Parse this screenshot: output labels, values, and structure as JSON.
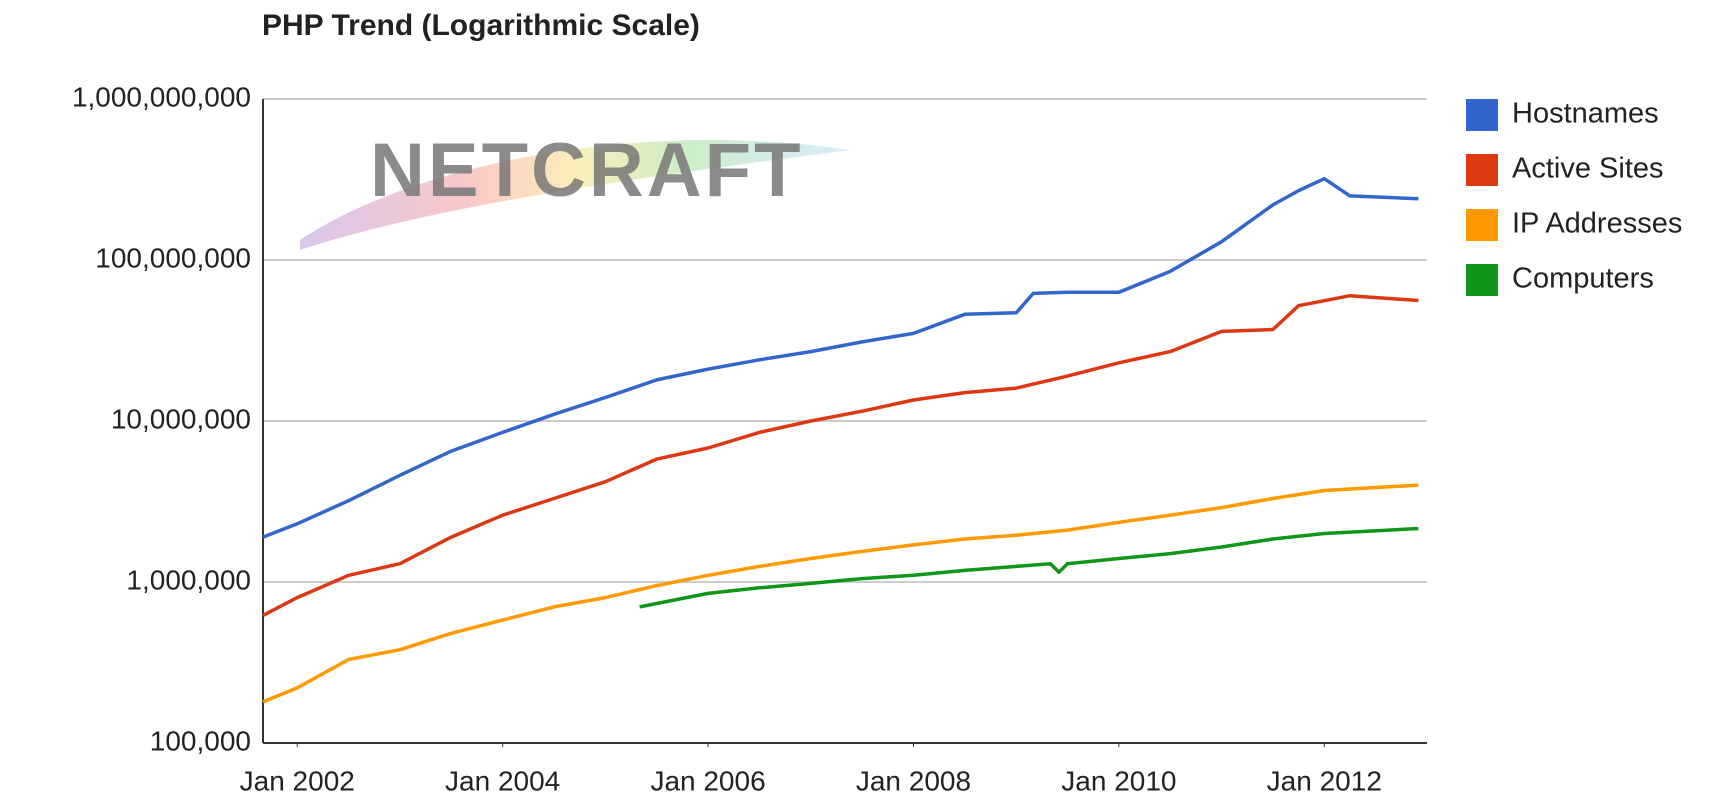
{
  "chart_data": {
    "type": "line",
    "title": "PHP Trend (Logarithmic Scale)",
    "logo": "NETCRAFT",
    "log_scale": true,
    "grid": true,
    "legend": "right",
    "ylim": [
      100000,
      1000000000
    ],
    "yticks": [
      {
        "value": 100000,
        "label": "100,000"
      },
      {
        "value": 1000000,
        "label": "1,000,000"
      },
      {
        "value": 10000000,
        "label": "10,000,000"
      },
      {
        "value": 100000000,
        "label": "100,000,000"
      },
      {
        "value": 1000000000,
        "label": "1,000,000,000"
      }
    ],
    "xlim": [
      "2001-09",
      "2013-01"
    ],
    "xticks": [
      {
        "value": "2002-01",
        "label": "Jan 2002"
      },
      {
        "value": "2004-01",
        "label": "Jan 2004"
      },
      {
        "value": "2006-01",
        "label": "Jan 2006"
      },
      {
        "value": "2008-01",
        "label": "Jan 2008"
      },
      {
        "value": "2010-01",
        "label": "Jan 2010"
      },
      {
        "value": "2012-01",
        "label": "Jan 2012"
      }
    ],
    "series": [
      {
        "name": "Hostnames",
        "color": "#3366cc",
        "x": [
          "2001-09",
          "2002-01",
          "2002-07",
          "2003-01",
          "2003-07",
          "2004-01",
          "2004-07",
          "2005-01",
          "2005-07",
          "2006-01",
          "2006-07",
          "2007-01",
          "2007-07",
          "2008-01",
          "2008-07",
          "2009-01",
          "2009-03",
          "2009-07",
          "2010-01",
          "2010-07",
          "2011-01",
          "2011-07",
          "2011-10",
          "2012-01",
          "2012-04",
          "2012-12"
        ],
        "values": [
          1900000,
          2300000,
          3200000,
          4600000,
          6500000,
          8500000,
          11000000,
          14000000,
          18000000,
          21000000,
          24000000,
          27000000,
          31000000,
          35000000,
          46000000,
          47000000,
          62000000,
          63000000,
          63000000,
          85000000,
          130000000,
          220000000,
          270000000,
          320000000,
          250000000,
          240000000
        ]
      },
      {
        "name": "Active Sites",
        "color": "#dc3912",
        "x": [
          "2001-09",
          "2002-01",
          "2002-07",
          "2003-01",
          "2003-07",
          "2004-01",
          "2004-07",
          "2005-01",
          "2005-07",
          "2006-01",
          "2006-07",
          "2007-01",
          "2007-07",
          "2008-01",
          "2008-07",
          "2009-01",
          "2009-07",
          "2010-01",
          "2010-07",
          "2011-01",
          "2011-07",
          "2011-10",
          "2012-04",
          "2012-12"
        ],
        "values": [
          620000,
          800000,
          1100000,
          1300000,
          1900000,
          2600000,
          3300000,
          4200000,
          5800000,
          6800000,
          8500000,
          10000000,
          11500000,
          13500000,
          15000000,
          16000000,
          19000000,
          23000000,
          27000000,
          36000000,
          37000000,
          52000000,
          60000000,
          56000000
        ]
      },
      {
        "name": "IP Addresses",
        "color": "#ff9900",
        "x": [
          "2001-09",
          "2002-01",
          "2002-07",
          "2003-01",
          "2003-07",
          "2004-01",
          "2004-07",
          "2005-01",
          "2005-07",
          "2006-01",
          "2006-07",
          "2007-01",
          "2007-07",
          "2008-01",
          "2008-07",
          "2009-01",
          "2009-07",
          "2010-01",
          "2010-07",
          "2011-01",
          "2011-07",
          "2012-01",
          "2012-12"
        ],
        "values": [
          180000,
          220000,
          330000,
          380000,
          480000,
          580000,
          700000,
          800000,
          950000,
          1100000,
          1250000,
          1400000,
          1550000,
          1700000,
          1850000,
          1950000,
          2100000,
          2350000,
          2600000,
          2900000,
          3300000,
          3700000,
          4000000
        ]
      },
      {
        "name": "Computers",
        "color": "#109618",
        "x": [
          "2005-05",
          "2006-01",
          "2006-07",
          "2007-01",
          "2007-07",
          "2008-01",
          "2008-07",
          "2009-01",
          "2009-05",
          "2009-06",
          "2009-07",
          "2010-01",
          "2010-07",
          "2011-01",
          "2011-07",
          "2012-01",
          "2012-12"
        ],
        "values": [
          700000,
          850000,
          920000,
          980000,
          1050000,
          1100000,
          1180000,
          1250000,
          1300000,
          1150000,
          1300000,
          1400000,
          1500000,
          1650000,
          1850000,
          2000000,
          2150000
        ]
      }
    ]
  }
}
